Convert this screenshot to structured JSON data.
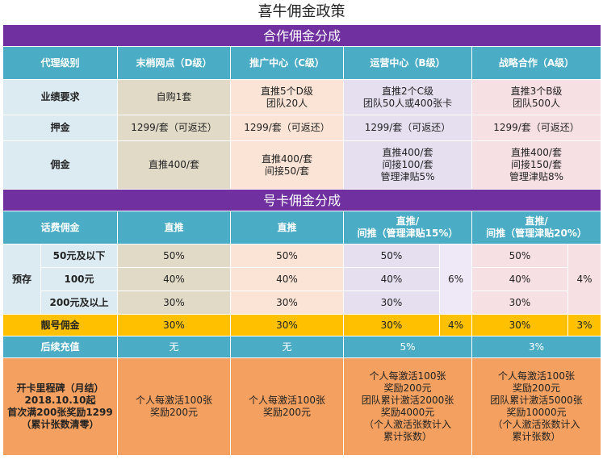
{
  "title": "喜牛佣金政策",
  "section1": {
    "title": "合作佣金分成",
    "headers": [
      "代理级别",
      "末梢网点（D级）",
      "推广中心（C级）",
      "运营中心（B级）",
      "战略合作（A级）"
    ],
    "rows": [
      {
        "label": "业绩要求",
        "cells": [
          [
            "自购1套"
          ],
          [
            "直推5个D级",
            "团队20人"
          ],
          [
            "直推2个C级",
            "团队50人或400张卡"
          ],
          [
            "直推3个B级",
            "团队500人"
          ]
        ]
      },
      {
        "label": "押金",
        "cells": [
          [
            "1299/套（可返还）"
          ],
          [
            "1299/套（可返还）"
          ],
          [
            "1299/套（可返还）"
          ],
          [
            "1299/套（可返还）"
          ]
        ]
      },
      {
        "label": "佣金",
        "cells": [
          [
            "直推400/套"
          ],
          [
            "直推400/套",
            "间接50/套"
          ],
          [
            "直推400/套",
            "间接100/套",
            "管理津贴5%"
          ],
          [
            "直推400/套",
            "间接150/套",
            "管理津贴8%"
          ]
        ]
      }
    ]
  },
  "section2": {
    "title": "号卡佣金分成",
    "headers": {
      "label": "话费佣金",
      "d": "直推",
      "c": "直推",
      "b": [
        "直推/",
        "间推（管理津贴15%）"
      ],
      "a": [
        "直推/",
        "间推（管理津贴20%）"
      ]
    },
    "prestore_label": "预存",
    "prestore_rows": [
      {
        "label": "50元及以下",
        "d": "50%",
        "c": "50%",
        "b": "50%",
        "a": "50%"
      },
      {
        "label": "100元",
        "d": "40%",
        "c": "40%",
        "b": "40%",
        "a": "40%"
      },
      {
        "label": "200元及以上",
        "d": "30%",
        "c": "30%",
        "b": "30%",
        "a": "30%"
      }
    ],
    "prestore_mgmt": {
      "b": "6%",
      "a": "4%"
    },
    "liang": {
      "label": "靓号佣金",
      "d": "30%",
      "c": "30%",
      "b": "30%",
      "b_mgmt": "4%",
      "a": "30%",
      "a_mgmt": "3%"
    },
    "recharge": {
      "label": "后续充值",
      "d": "无",
      "c": "无",
      "b": "5%",
      "a": "3%"
    },
    "milestone": {
      "label": [
        "开卡里程碑（月结）",
        "2018.10.10起",
        "首次满200张奖励1299",
        "（累计张数清零）"
      ],
      "d": [
        "个人每激活100张",
        "奖励200元"
      ],
      "c": [
        "个人每激活100张",
        "奖励200元"
      ],
      "b": [
        "个人每激活100张",
        "奖励200元",
        "团队累计激活2000张",
        "奖励4000元",
        "（个人激活张数计入",
        "累计张数）"
      ],
      "a": [
        "个人每激活100张",
        "奖励200元",
        "团队累计激活5000张",
        "奖励10000元",
        "（个人激活张数计入",
        "累计张数）"
      ]
    }
  }
}
